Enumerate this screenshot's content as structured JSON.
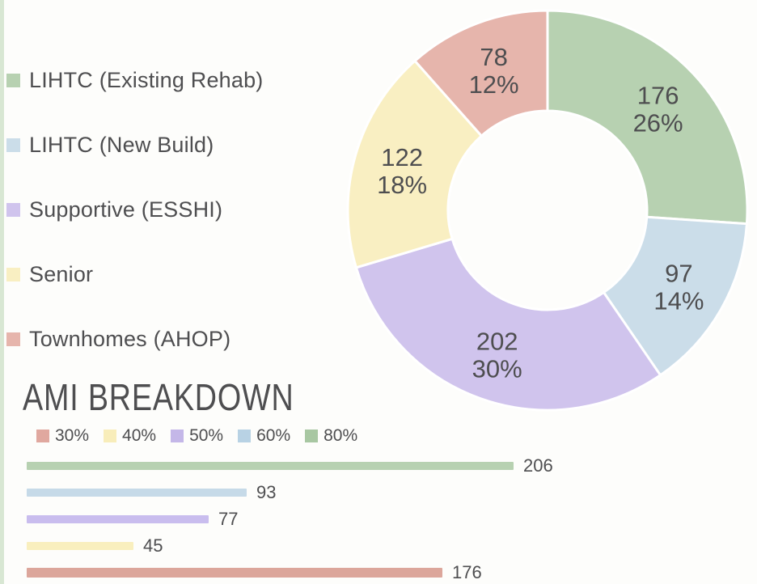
{
  "page": {
    "background_color": "#fdfdfb",
    "left_accent_strip_color": "#d8e7d3",
    "text_color": "#4e4e50"
  },
  "chart_data": [
    {
      "type": "pie",
      "subtype": "donut",
      "legend_position": "left",
      "start_angle": "top",
      "direction": "clockwise",
      "slices": [
        {
          "label": "LIHTC (Existing Rehab)",
          "value": 176,
          "pct_label": "26%",
          "color": "#b7d1b1"
        },
        {
          "label": "LIHTC (New Build)",
          "value": 97,
          "pct_label": "14%",
          "color": "#cbdde9"
        },
        {
          "label": "Supportive (ESSHI)",
          "value": 202,
          "pct_label": "30%",
          "color": "#d0c4ed"
        },
        {
          "label": "Senior",
          "value": 122,
          "pct_label": "18%",
          "color": "#f9efc2"
        },
        {
          "label": "Townhomes (AHOP)",
          "value": 78,
          "pct_label": "12%",
          "color": "#e6b5ac"
        }
      ]
    },
    {
      "type": "bar",
      "title": "AMI BREAKDOWN",
      "orientation": "horizontal",
      "value_labels": true,
      "xmax": 206,
      "legend": [
        {
          "label": "30%",
          "color": "#e0a89f"
        },
        {
          "label": "40%",
          "color": "#f8edba"
        },
        {
          "label": "50%",
          "color": "#c4b7e8"
        },
        {
          "label": "60%",
          "color": "#b8d2e4"
        },
        {
          "label": "80%",
          "color": "#a8c7a2"
        }
      ],
      "bars": [
        {
          "label": "80%",
          "value": 206,
          "color": "#b7d1b1"
        },
        {
          "label": "60%",
          "value": 93,
          "color": "#c6dae8"
        },
        {
          "label": "50%",
          "value": 77,
          "color": "#c9bdee"
        },
        {
          "label": "40%",
          "value": 45,
          "color": "#f9efbe"
        },
        {
          "label": "30%",
          "value": 176,
          "color": "#dca69b"
        }
      ]
    }
  ]
}
